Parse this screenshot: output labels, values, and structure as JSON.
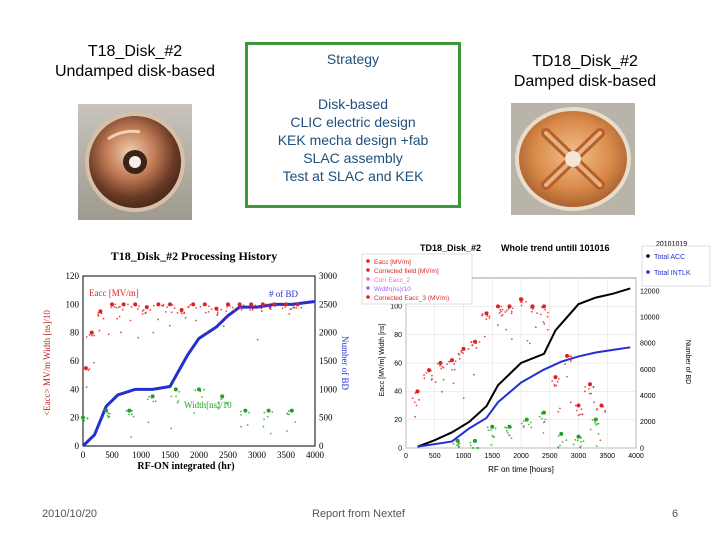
{
  "slide": {
    "left_title": [
      "T18_Disk_#2",
      "Undamped disk-based"
    ],
    "right_title": [
      "TD18_Disk_#2",
      "Damped disk-based"
    ],
    "strategy": {
      "heading": "Strategy",
      "lines": [
        "Disk-based",
        "CLIC electric design",
        "KEK mecha design +fab",
        "SLAC assembly",
        "Test at SLAC and KEK"
      ]
    },
    "footer": {
      "date": "2010/10/20",
      "center": "Report from Nextef",
      "page": "6"
    },
    "colors": {
      "box_border": "#3a9a3a",
      "strategy_text": "#1f4f7a"
    }
  },
  "chart_data": [
    {
      "type": "scatter",
      "title": "T18_Disk_#2 Processing History",
      "xlabel": "RF-ON integrated (hr)",
      "ylabel": "<Eacc> MV/m  Width [ns]/10",
      "y2label": "Number of BD",
      "x_ticks": [
        "0",
        "500",
        "1000",
        "1500",
        "2000",
        "2500",
        "3000",
        "3500",
        "4000"
      ],
      "y_ticks": [
        "0",
        "20",
        "40",
        "60",
        "80",
        "100",
        "120"
      ],
      "y2_ticks": [
        "0",
        "500",
        "1000",
        "1500",
        "2000",
        "2500",
        "3000"
      ],
      "xlim": [
        0,
        4000
      ],
      "ylim": [
        0,
        120
      ],
      "y2lim": [
        0,
        3000
      ],
      "annotations": [
        "Eacc [MV/m]",
        "# of BD",
        "Width[ns]/10"
      ],
      "series": [
        {
          "name": "# of BD",
          "color": "#2330d0",
          "x": [
            0,
            200,
            400,
            600,
            900,
            1200,
            1500,
            1800,
            2000,
            2300,
            2500,
            2700,
            3000,
            3300,
            3600,
            4000
          ],
          "y": [
            0,
            200,
            700,
            900,
            1000,
            1000,
            1050,
            1600,
            1900,
            2100,
            2300,
            2450,
            2450,
            2500,
            2500,
            2550
          ]
        },
        {
          "name": "Eacc [MV/m]",
          "color": "#e02020",
          "x": [
            50,
            150,
            300,
            500,
            700,
            900,
            1100,
            1300,
            1500,
            1700,
            1900,
            2100,
            2300,
            2500,
            2700,
            2900,
            3100,
            3300,
            3500,
            3700
          ],
          "y": [
            55,
            80,
            95,
            100,
            100,
            100,
            98,
            100,
            100,
            96,
            100,
            100,
            97,
            100,
            100,
            100,
            100,
            100,
            100,
            100
          ]
        },
        {
          "name": "Width[ns]/10",
          "color": "#22a022",
          "x": [
            0,
            400,
            800,
            1200,
            1600,
            2000,
            2400,
            2800,
            3200,
            3600
          ],
          "y": [
            20,
            25,
            25,
            35,
            40,
            40,
            35,
            25,
            25,
            25
          ]
        }
      ]
    },
    {
      "type": "scatter",
      "title": "TD18_Disk_#2",
      "subtitle": "Whole trend untill 101016",
      "date_label": "20101019",
      "xlabel": "RF on time [hours]",
      "ylabel": "Eacc [MV/m] Width [ns]",
      "y2label": "Number of BD",
      "x_ticks": [
        "0",
        "500",
        "1000",
        "1500",
        "2000",
        "2500",
        "3000",
        "3500",
        "4000"
      ],
      "y_ticks": [
        "0",
        "20",
        "40",
        "60",
        "80",
        "100"
      ],
      "y2_ticks": [
        "0",
        "2000",
        "4000",
        "6000",
        "8000",
        "10000",
        "12000"
      ],
      "xlim": [
        0,
        4000
      ],
      "ylim": [
        0,
        120
      ],
      "y2lim": [
        0,
        13000
      ],
      "legend": [
        "Eacc [MV/m]",
        "Corrected field [MV/m]",
        "Corr Eacc_2",
        "Width(ns)/10",
        "Corrected Eacc_3 (MV/m)"
      ],
      "legend_right": [
        "Total ACC",
        "Total INTLK"
      ],
      "series": [
        {
          "name": "Total ACC",
          "color": "#000000",
          "x": [
            200,
            500,
            800,
            1100,
            1400,
            1600,
            2000,
            2400,
            2600,
            3000,
            3300,
            3600,
            3900
          ],
          "y": [
            100,
            600,
            1200,
            2000,
            3200,
            4800,
            6500,
            7200,
            9000,
            11000,
            11500,
            11800,
            12200
          ]
        },
        {
          "name": "Total INTLK",
          "color": "#2330d0",
          "x": [
            200,
            500,
            800,
            1100,
            1400,
            1600,
            2000,
            2400,
            2700,
            3000,
            3300,
            3600,
            3900
          ],
          "y": [
            100,
            300,
            500,
            1500,
            2300,
            3500,
            5000,
            6000,
            6600,
            7000,
            7300,
            7500,
            7700
          ]
        },
        {
          "name": "Eacc [MV/m]",
          "color": "#e02020",
          "x": [
            200,
            400,
            600,
            800,
            1000,
            1200,
            1400,
            1600,
            1800,
            2000,
            2200,
            2400,
            2600,
            2800,
            3000,
            3200,
            3400
          ],
          "y": [
            40,
            55,
            60,
            62,
            70,
            75,
            95,
            100,
            100,
            105,
            100,
            100,
            50,
            65,
            30,
            45,
            30
          ]
        },
        {
          "name": "Width(ns)/10",
          "color": "#22a022",
          "x": [
            900,
            1200,
            1500,
            1800,
            2100,
            2400,
            2700,
            3000,
            3300
          ],
          "y": [
            5,
            5,
            15,
            15,
            20,
            25,
            10,
            8,
            20
          ]
        }
      ]
    }
  ]
}
